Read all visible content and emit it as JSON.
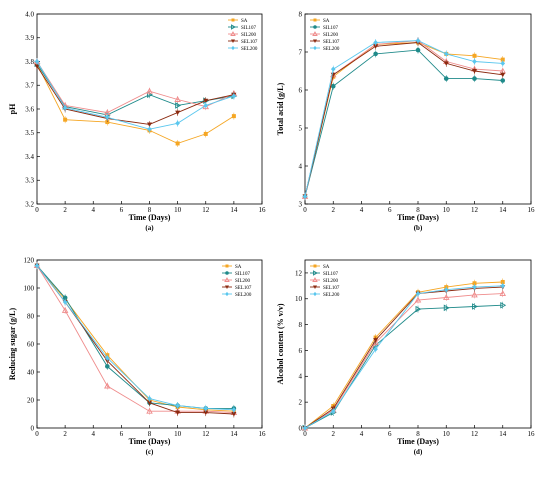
{
  "figure": {
    "panel_count": 4
  },
  "chart_data": [
    {
      "type": "line",
      "panel_label": "(a)",
      "xlabel": "Time (Days)",
      "ylabel": "pH",
      "xlim": [
        0,
        16
      ],
      "ylim": [
        3.2,
        4.0
      ],
      "xticks": [
        0,
        2,
        4,
        6,
        8,
        10,
        12,
        14,
        16
      ],
      "yticks": [
        3.2,
        3.3,
        3.4,
        3.5,
        3.6,
        3.7,
        3.8,
        3.9,
        4.0
      ],
      "ytick_decimals": 1,
      "legend": "top-right",
      "x": [
        0,
        2,
        5,
        8,
        10,
        12,
        14
      ],
      "series": [
        {
          "name": "SA",
          "color": "#f5a623",
          "marker": "square",
          "values": [
            3.79,
            3.555,
            3.545,
            3.51,
            3.455,
            3.495,
            3.57
          ]
        },
        {
          "name": "SIL107",
          "color": "#1f8a8a",
          "marker": "tri-right",
          "values": [
            3.79,
            3.61,
            3.575,
            3.66,
            3.615,
            3.635,
            3.655
          ]
        },
        {
          "name": "SIL200",
          "color": "#ef8c8c",
          "marker": "tri-up",
          "values": [
            3.8,
            3.615,
            3.585,
            3.675,
            3.64,
            3.61,
            3.665
          ]
        },
        {
          "name": "SEL107",
          "color": "#8b2a10",
          "marker": "tri-down",
          "values": [
            3.78,
            3.6,
            3.56,
            3.535,
            3.585,
            3.635,
            3.66
          ]
        },
        {
          "name": "SEL200",
          "color": "#5bc7ee",
          "marker": "diamond",
          "values": [
            3.8,
            3.605,
            3.565,
            3.515,
            3.54,
            3.615,
            3.655
          ]
        }
      ]
    },
    {
      "type": "line",
      "panel_label": "(b)",
      "xlabel": "Time (Days)",
      "ylabel": "Total acid (g/L)",
      "xlim": [
        0,
        16
      ],
      "ylim": [
        3,
        8
      ],
      "xticks": [
        0,
        2,
        4,
        6,
        8,
        10,
        12,
        14,
        16
      ],
      "yticks": [
        3,
        4,
        5,
        6,
        7,
        8
      ],
      "ytick_decimals": 0,
      "legend": "top-left",
      "x": [
        0,
        2,
        5,
        8,
        10,
        12,
        14
      ],
      "series": [
        {
          "name": "SA",
          "color": "#f5a623",
          "marker": "square",
          "values": [
            3.2,
            6.35,
            7.2,
            7.25,
            6.95,
            6.9,
            6.8
          ]
        },
        {
          "name": "SIL107",
          "color": "#1f8a8a",
          "marker": "circle",
          "values": [
            3.2,
            6.1,
            6.95,
            7.05,
            6.3,
            6.3,
            6.25
          ]
        },
        {
          "name": "SIL200",
          "color": "#ef8c8c",
          "marker": "tri-up",
          "values": [
            3.2,
            6.4,
            7.2,
            7.3,
            6.75,
            6.55,
            6.5
          ]
        },
        {
          "name": "SEL107",
          "color": "#8b2a10",
          "marker": "tri-down",
          "values": [
            3.2,
            6.4,
            7.15,
            7.25,
            6.7,
            6.5,
            6.4
          ]
        },
        {
          "name": "SEL200",
          "color": "#5bc7ee",
          "marker": "diamond",
          "values": [
            3.2,
            6.55,
            7.25,
            7.3,
            6.95,
            6.75,
            6.7
          ]
        }
      ]
    },
    {
      "type": "line",
      "panel_label": "(c)",
      "xlabel": "Time (Days)",
      "ylabel": "Reducing sugar (g/L)",
      "xlim": [
        0,
        16
      ],
      "ylim": [
        0,
        120
      ],
      "xticks": [
        0,
        2,
        4,
        6,
        8,
        10,
        12,
        14,
        16
      ],
      "yticks": [
        0,
        20,
        40,
        60,
        80,
        100,
        120
      ],
      "ytick_decimals": 0,
      "legend": "top-right",
      "x": [
        0,
        2,
        5,
        8,
        10,
        12,
        14
      ],
      "series": [
        {
          "name": "SA",
          "color": "#f5a623",
          "marker": "square",
          "values": [
            116,
            92,
            52,
            20,
            15,
            13,
            12
          ]
        },
        {
          "name": "SIL107",
          "color": "#1f8a8a",
          "marker": "circle",
          "values": [
            116,
            93,
            44,
            18,
            16,
            14,
            14
          ]
        },
        {
          "name": "SIL200",
          "color": "#ef8c8c",
          "marker": "tri-up",
          "values": [
            116,
            84,
            30,
            12,
            12,
            12,
            11
          ]
        },
        {
          "name": "SEL107",
          "color": "#8b2a10",
          "marker": "tri-down",
          "values": [
            116,
            90,
            48,
            18,
            11,
            11,
            10
          ]
        },
        {
          "name": "SEL200",
          "color": "#5bc7ee",
          "marker": "diamond",
          "values": [
            116,
            90,
            50,
            21,
            16,
            14,
            13
          ]
        }
      ]
    },
    {
      "type": "line",
      "panel_label": "(d)",
      "xlabel": "Time (Days)",
      "ylabel": "Alcohol content (% v/v)",
      "xlim": [
        0,
        16
      ],
      "ylim": [
        0,
        13
      ],
      "xticks": [
        0,
        2,
        4,
        6,
        8,
        10,
        12,
        14,
        16
      ],
      "yticks": [
        0,
        2,
        4,
        6,
        8,
        10,
        12
      ],
      "ytick_decimals": 0,
      "legend": "top-left",
      "x": [
        0,
        2,
        5,
        8,
        10,
        12,
        14
      ],
      "series": [
        {
          "name": "SA",
          "color": "#f5a623",
          "marker": "square",
          "values": [
            0,
            1.7,
            7.0,
            10.5,
            10.9,
            11.2,
            11.3
          ]
        },
        {
          "name": "SIL107",
          "color": "#1f8a8a",
          "marker": "tri-right",
          "values": [
            0,
            1.2,
            6.4,
            9.2,
            9.3,
            9.4,
            9.5
          ]
        },
        {
          "name": "SIL200",
          "color": "#ef8c8c",
          "marker": "tri-up",
          "values": [
            0,
            1.4,
            6.6,
            9.9,
            10.1,
            10.3,
            10.4
          ]
        },
        {
          "name": "SEL107",
          "color": "#8b2a10",
          "marker": "tri-down",
          "values": [
            0,
            1.5,
            6.8,
            10.4,
            10.6,
            10.8,
            10.9
          ]
        },
        {
          "name": "SEL200",
          "color": "#5bc7ee",
          "marker": "diamond",
          "values": [
            0,
            1.3,
            6.1,
            10.4,
            10.7,
            10.9,
            11.0
          ]
        }
      ]
    }
  ]
}
